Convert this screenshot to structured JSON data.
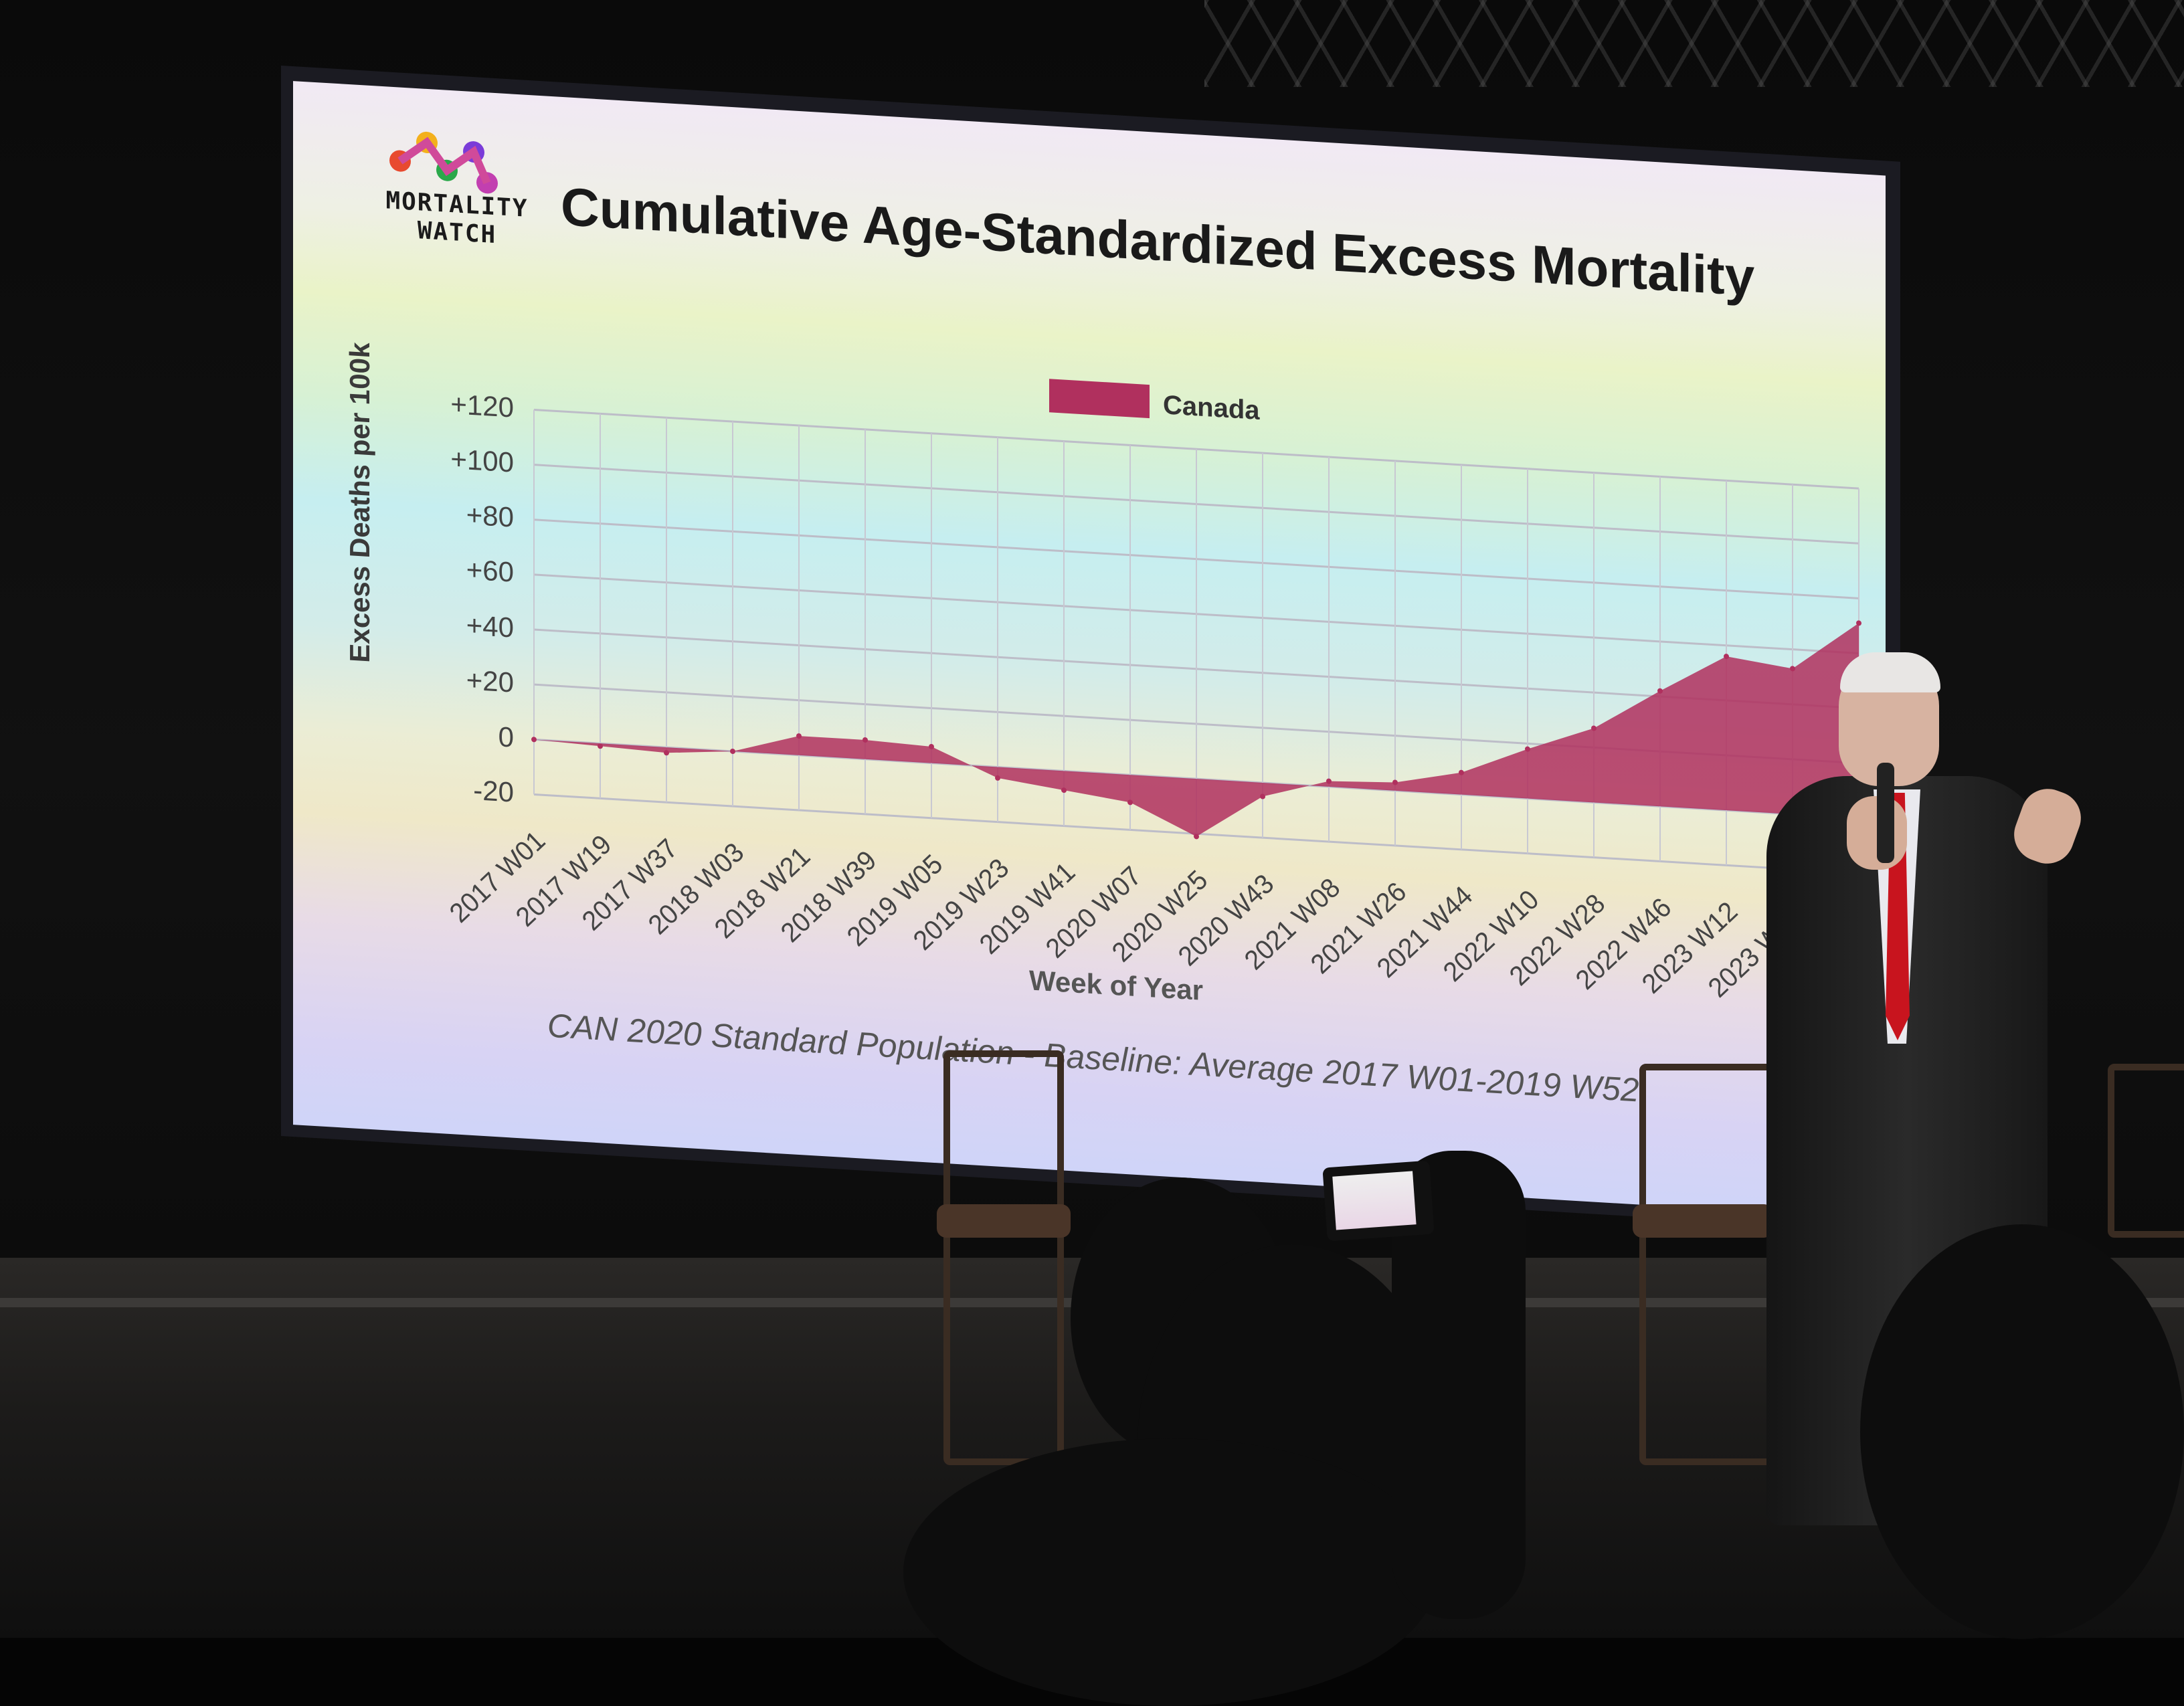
{
  "slide": {
    "logo_text_line1": "MORTALITY",
    "logo_text_line2": "WATCH",
    "title": "Cumulative Age-Standardized Excess Mortality",
    "subtitle": "CAN 2020 Standard Population - Baseline: Average 2017 W01-2019 W52"
  },
  "chart_data": {
    "type": "area",
    "title": "Cumulative Age-Standardized Excess Mortality",
    "xlabel": "Week of Year",
    "ylabel": "Excess Deaths per 100k",
    "ylim": [
      -20,
      120
    ],
    "yticks": [
      "+120",
      "+100",
      "+80",
      "+60",
      "+40",
      "+20",
      "0",
      "-20"
    ],
    "categories": [
      "2017 W01",
      "2017 W19",
      "2017 W37",
      "2018 W03",
      "2018 W21",
      "2018 W39",
      "2019 W05",
      "2019 W23",
      "2019 W41",
      "2020 W07",
      "2020 W25",
      "2020 W43",
      "2021 W08",
      "2021 W26",
      "2021 W44",
      "2022 W10",
      "2022 W28",
      "2022 W46",
      "2023 W12",
      "2023 W30",
      "2023 W"
    ],
    "series": [
      {
        "name": "Canada",
        "color": "#b0305e",
        "values": [
          0,
          -1,
          -2,
          0,
          7,
          7,
          6,
          -4,
          -7,
          -10,
          -21,
          -5,
          2,
          3,
          8,
          18,
          27,
          42,
          56,
          53,
          71
        ]
      }
    ],
    "legend": "top-center",
    "grid": true
  },
  "colors": {
    "area": "#b0305e",
    "text": "#444444"
  }
}
